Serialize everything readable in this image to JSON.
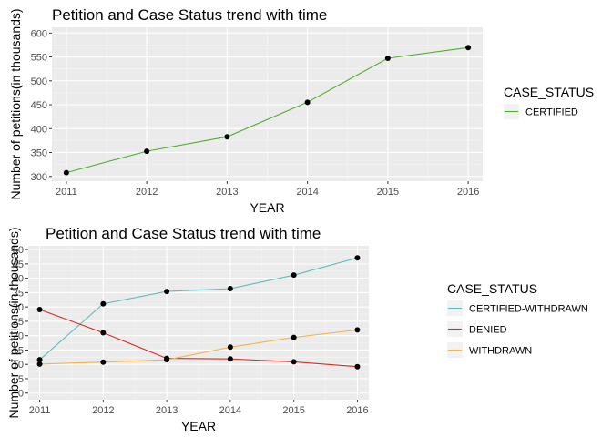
{
  "chart_data": [
    {
      "type": "line",
      "title": "Petition and Case Status trend with time",
      "xlabel": "YEAR",
      "ylabel": "Number of petitions(in thousands)",
      "x": [
        2011,
        2012,
        2013,
        2014,
        2015,
        2016
      ],
      "xlim": [
        2010.82,
        2016.18
      ],
      "ylim": [
        290,
        612
      ],
      "yticks": [
        300,
        350,
        400,
        450,
        500,
        550,
        600
      ],
      "grid": true,
      "legend_title": "CASE_STATUS",
      "legend_position": "right",
      "series": [
        {
          "name": "CERTIFIED",
          "color": "#4daf2a",
          "values": [
            307.9,
            352.7,
            382.9,
            455.1,
            547.3,
            569.6
          ]
        }
      ]
    },
    {
      "type": "line",
      "title": "Petition and Case Status trend with time",
      "xlabel": "YEAR",
      "ylabel": "Number of petitions(in thousands)",
      "x": [
        2011,
        2012,
        2013,
        2014,
        2015,
        2016
      ],
      "xlim": [
        2010.82,
        2016.18
      ],
      "ylim": [
        -2.3,
        51.3
      ],
      "yticks": [
        0,
        5,
        10,
        15,
        20,
        25,
        30,
        35,
        40,
        45,
        50
      ],
      "grid": true,
      "legend_title": "CASE_STATUS",
      "legend_position": "right",
      "series": [
        {
          "name": "CERTIFIED-WITHDRAWN",
          "color": "#5bbcbc",
          "values": [
            11.6,
            31.1,
            35.4,
            36.4,
            41.1,
            47.1
          ]
        },
        {
          "name": "DENIED",
          "color": "#e2271c",
          "values": [
            29.1,
            21.0,
            12.1,
            11.9,
            10.9,
            9.2
          ]
        },
        {
          "name": "WITHDRAWN",
          "color": "#f8b24a",
          "values": [
            10.1,
            10.8,
            11.6,
            16.0,
            19.4,
            22.0
          ]
        }
      ]
    }
  ]
}
